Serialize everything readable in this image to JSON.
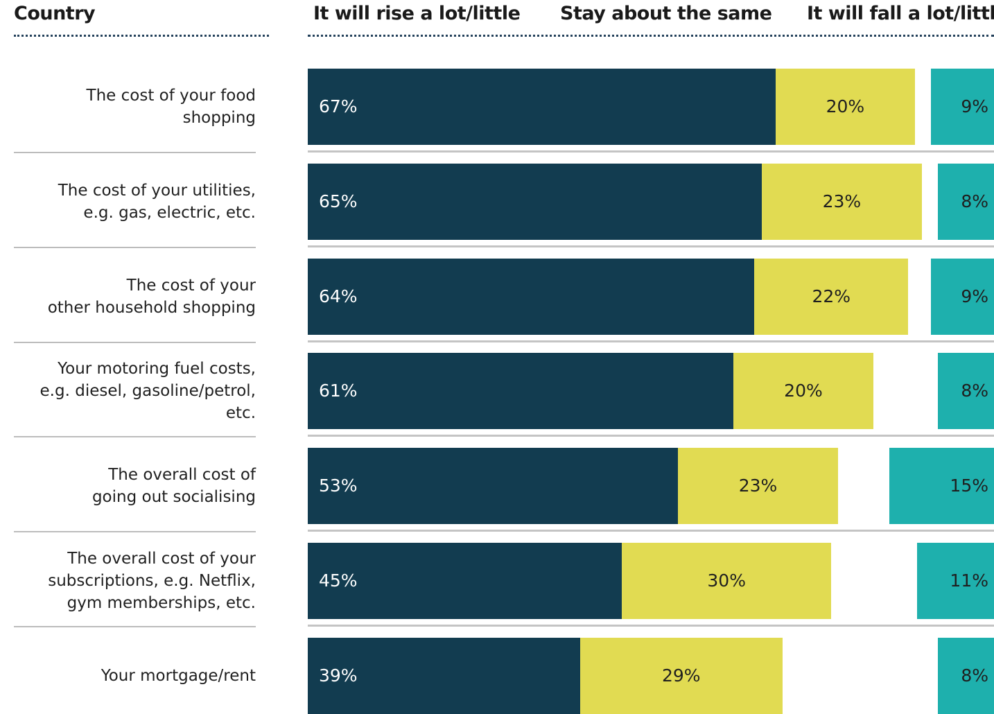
{
  "headers": {
    "country": "Country",
    "rise": "It will rise a lot/little",
    "same": "Stay about the same",
    "fall": "It will fall a lot/little"
  },
  "colors": {
    "rise": "#123c50",
    "same": "#e1db52",
    "fall": "#1eb0ad",
    "rise_text": "#ffffff",
    "same_text": "#1f1f1f",
    "fall_text": "#1f1f1f"
  },
  "chart_data": {
    "type": "bar",
    "orientation": "horizontal",
    "grid": false,
    "categories": [
      [
        "The cost of your food",
        "shopping"
      ],
      [
        "The cost of your utilities,",
        "e.g. gas, electric, etc."
      ],
      [
        "The cost of your",
        "other household shopping"
      ],
      [
        "Your motoring fuel costs,",
        "e.g. diesel, gasoline/petrol,",
        "etc."
      ],
      [
        "The overall cost of",
        "going out socialising"
      ],
      [
        "The overall cost of your",
        "subscriptions, e.g. Netflix,",
        "gym memberships, etc."
      ],
      [
        "Your mortgage/rent"
      ]
    ],
    "series": [
      {
        "name": "It will rise a lot/little",
        "values": [
          67,
          65,
          64,
          61,
          53,
          45,
          39
        ],
        "labels": [
          "67%",
          "65%",
          "64%",
          "61%",
          "53%",
          "45%",
          "39%"
        ]
      },
      {
        "name": "Stay about the same",
        "values": [
          20,
          23,
          22,
          20,
          23,
          30,
          29
        ],
        "labels": [
          "20%",
          "23%",
          "22%",
          "20%",
          "23%",
          "30%",
          "29%"
        ]
      },
      {
        "name": "It will fall a lot/little",
        "values": [
          9,
          8,
          9,
          8,
          15,
          11,
          8
        ],
        "labels": [
          "9%",
          "8%",
          "9%",
          "8%",
          "15%",
          "11%",
          "8%"
        ]
      }
    ]
  }
}
